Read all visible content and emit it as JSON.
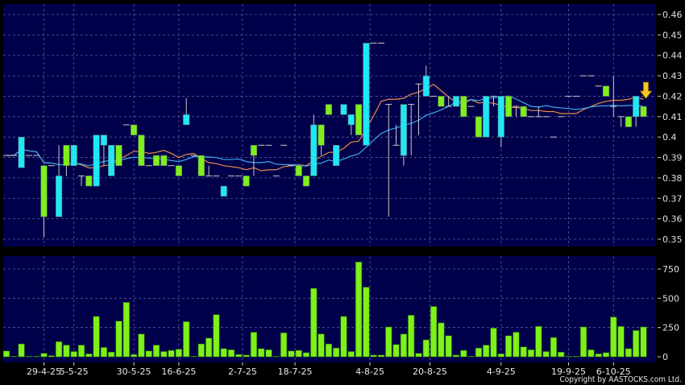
{
  "chart_data": [
    {
      "type": "candlestick",
      "panel": "price",
      "ylim": [
        0.345,
        0.465
      ],
      "y_ticks": [
        0.35,
        0.36,
        0.37,
        0.38,
        0.39,
        0.4,
        0.41,
        0.42,
        0.43,
        0.44,
        0.45,
        0.46
      ],
      "grid": true,
      "colors": {
        "background": "#00004a",
        "up": "#1ee8f8",
        "down": "#7ef01a",
        "wick": "#c8c8c8",
        "ma_short": "#e88a4a",
        "ma_long": "#3aaaf0",
        "marker": "#f8c820"
      },
      "moving_averages": [
        {
          "period": 10,
          "color": "#e88a4a"
        },
        {
          "period": 20,
          "color": "#3aaaf0"
        }
      ],
      "ohlc": [
        [
          0.391,
          0.391,
          0.391,
          0.391
        ],
        [
          0.391,
          0.391,
          0.391,
          0.391
        ],
        [
          0.385,
          0.4,
          0.385,
          0.4
        ],
        [
          0.391,
          0.391,
          0.391,
          0.391
        ],
        [
          0.391,
          0.391,
          0.391,
          0.391
        ],
        [
          0.386,
          0.386,
          0.351,
          0.361
        ],
        [
          0.386,
          0.386,
          0.386,
          0.386
        ],
        [
          0.361,
          0.396,
          0.361,
          0.381
        ],
        [
          0.396,
          0.396,
          0.381,
          0.386
        ],
        [
          0.386,
          0.396,
          0.386,
          0.396
        ],
        [
          0.381,
          0.381,
          0.376,
          0.381
        ],
        [
          0.381,
          0.381,
          0.376,
          0.376
        ],
        [
          0.376,
          0.401,
          0.376,
          0.401
        ],
        [
          0.396,
          0.401,
          0.386,
          0.401
        ],
        [
          0.381,
          0.396,
          0.381,
          0.396
        ],
        [
          0.396,
          0.396,
          0.386,
          0.386
        ],
        [
          0.406,
          0.406,
          0.406,
          0.406
        ],
        [
          0.406,
          0.406,
          0.401,
          0.401
        ],
        [
          0.401,
          0.401,
          0.386,
          0.386
        ],
        [
          0.386,
          0.386,
          0.386,
          0.386
        ],
        [
          0.391,
          0.391,
          0.386,
          0.386
        ],
        [
          0.391,
          0.391,
          0.386,
          0.386
        ],
        [
          0.386,
          0.386,
          0.386,
          0.386
        ],
        [
          0.386,
          0.386,
          0.381,
          0.381
        ],
        [
          0.406,
          0.419,
          0.406,
          0.411
        ],
        [
          0.391,
          0.391,
          0.391,
          0.391
        ],
        [
          0.391,
          0.391,
          0.381,
          0.381
        ],
        [
          0.381,
          0.386,
          0.381,
          0.381
        ],
        [
          0.381,
          0.381,
          0.381,
          0.381
        ],
        [
          0.371,
          0.376,
          0.371,
          0.376
        ],
        [
          0.381,
          0.381,
          0.381,
          0.381
        ],
        [
          0.381,
          0.381,
          0.381,
          0.381
        ],
        [
          0.381,
          0.381,
          0.376,
          0.376
        ],
        [
          0.396,
          0.396,
          0.381,
          0.391
        ],
        [
          0.396,
          0.396,
          0.396,
          0.396
        ],
        [
          0.396,
          0.396,
          0.396,
          0.396
        ],
        [
          0.381,
          0.381,
          0.381,
          0.381
        ],
        [
          0.396,
          0.396,
          0.396,
          0.396
        ],
        [
          0.386,
          0.386,
          0.386,
          0.386
        ],
        [
          0.386,
          0.386,
          0.381,
          0.381
        ],
        [
          0.381,
          0.381,
          0.376,
          0.376
        ],
        [
          0.381,
          0.411,
          0.381,
          0.406
        ],
        [
          0.406,
          0.406,
          0.391,
          0.396
        ],
        [
          0.416,
          0.416,
          0.411,
          0.411
        ],
        [
          0.386,
          0.396,
          0.386,
          0.396
        ],
        [
          0.411,
          0.416,
          0.411,
          0.416
        ],
        [
          0.406,
          0.411,
          0.401,
          0.411
        ],
        [
          0.416,
          0.416,
          0.401,
          0.401
        ],
        [
          0.396,
          0.446,
          0.396,
          0.446
        ],
        [
          0.446,
          0.446,
          0.446,
          0.446
        ],
        [
          0.446,
          0.446,
          0.446,
          0.446
        ],
        [
          0.416,
          0.416,
          0.361,
          0.416
        ],
        [
          0.396,
          0.406,
          0.396,
          0.396
        ],
        [
          0.391,
          0.416,
          0.386,
          0.416
        ],
        [
          0.416,
          0.416,
          0.391,
          0.416
        ],
        [
          0.426,
          0.426,
          0.401,
          0.426
        ],
        [
          0.42,
          0.435,
          0.42,
          0.43
        ],
        [
          0.42,
          0.42,
          0.42,
          0.42
        ],
        [
          0.42,
          0.42,
          0.415,
          0.415
        ],
        [
          0.415,
          0.42,
          0.415,
          0.415
        ],
        [
          0.415,
          0.42,
          0.415,
          0.42
        ],
        [
          0.42,
          0.42,
          0.41,
          0.41
        ],
        [
          0.415,
          0.415,
          0.415,
          0.415
        ],
        [
          0.41,
          0.41,
          0.4,
          0.4
        ],
        [
          0.4,
          0.42,
          0.4,
          0.42
        ],
        [
          0.42,
          0.42,
          0.415,
          0.42
        ],
        [
          0.4,
          0.42,
          0.395,
          0.42
        ],
        [
          0.42,
          0.42,
          0.41,
          0.41
        ],
        [
          0.415,
          0.415,
          0.41,
          0.415
        ],
        [
          0.415,
          0.415,
          0.41,
          0.41
        ],
        [
          0.41,
          0.41,
          0.41,
          0.41
        ],
        [
          0.41,
          0.415,
          0.41,
          0.41
        ],
        [
          0.41,
          0.41,
          0.41,
          0.41
        ],
        [
          0.4,
          0.4,
          0.4,
          0.4
        ],
        [
          0.41,
          0.41,
          0.41,
          0.41
        ],
        [
          0.42,
          0.42,
          0.42,
          0.42
        ],
        [
          0.42,
          0.42,
          0.42,
          0.42
        ],
        [
          0.43,
          0.43,
          0.43,
          0.43
        ],
        [
          0.43,
          0.43,
          0.43,
          0.43
        ],
        [
          0.425,
          0.425,
          0.425,
          0.425
        ],
        [
          0.425,
          0.425,
          0.42,
          0.42
        ],
        [
          0.415,
          0.43,
          0.41,
          0.415
        ],
        [
          0.41,
          0.41,
          0.405,
          0.41
        ],
        [
          0.41,
          0.41,
          0.405,
          0.405
        ],
        [
          0.41,
          0.42,
          0.405,
          0.42
        ],
        [
          0.415,
          0.415,
          0.41,
          0.41
        ]
      ],
      "ohlc_order": [
        "open",
        "high",
        "low",
        "close"
      ],
      "marker": {
        "type": "down-arrow",
        "index": 85
      }
    },
    {
      "type": "bar",
      "panel": "volume",
      "ylim": [
        0,
        850
      ],
      "y_ticks": [
        0,
        250,
        500,
        750
      ],
      "grid": true,
      "colors": {
        "bar": "#7ef01a"
      },
      "values": [
        50,
        5,
        110,
        5,
        5,
        30,
        10,
        130,
        100,
        45,
        100,
        25,
        345,
        80,
        40,
        305,
        465,
        20,
        195,
        50,
        100,
        45,
        55,
        65,
        300,
        5,
        110,
        160,
        360,
        70,
        60,
        20,
        15,
        210,
        70,
        60,
        5,
        205,
        50,
        55,
        35,
        585,
        195,
        110,
        75,
        345,
        45,
        810,
        595,
        15,
        15,
        255,
        105,
        195,
        355,
        30,
        145,
        430,
        290,
        180,
        15,
        55,
        5,
        75,
        100,
        245,
        25,
        180,
        210,
        85,
        60,
        260,
        45,
        165,
        40,
        5,
        5,
        255,
        60,
        25,
        35,
        340,
        260,
        70,
        225,
        255
      ]
    }
  ],
  "x_ticks": [
    {
      "label": "29-4-25",
      "index": 5
    },
    {
      "label": "5-5-25",
      "index": 9
    },
    {
      "label": "30-5-25",
      "index": 17
    },
    {
      "label": "16-6-25",
      "index": 23
    },
    {
      "label": "2-7-25",
      "index": 31.5
    },
    {
      "label": "18-7-25",
      "index": 38.5
    },
    {
      "label": "4-8-25",
      "index": 48.5
    },
    {
      "label": "20-8-25",
      "index": 56.5
    },
    {
      "label": "4-9-25",
      "index": 66
    },
    {
      "label": "19-9-25",
      "index": 75
    },
    {
      "label": "6-10-25",
      "index": 81
    }
  ],
  "copyright": "Copyright by AASTOCKS.com Ltd."
}
